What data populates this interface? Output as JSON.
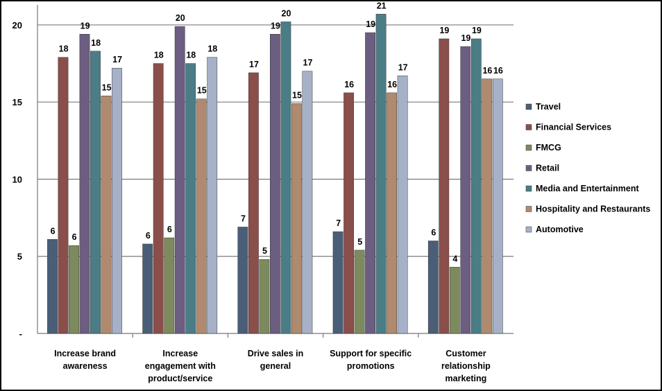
{
  "chart_data": {
    "type": "bar",
    "categories": [
      [
        "Increase brand",
        "awareness"
      ],
      [
        "Increase",
        "engagement with",
        "product/service"
      ],
      [
        "Drive sales in",
        "general"
      ],
      [
        "Support for specific",
        "promotions"
      ],
      [
        "Customer",
        "relationship",
        "marketing"
      ]
    ],
    "y_ticks": [
      {
        "value": 0,
        "label": "-"
      },
      {
        "value": 5,
        "label": "5"
      },
      {
        "value": 10,
        "label": "10"
      },
      {
        "value": 15,
        "label": "15"
      },
      {
        "value": 20,
        "label": "20"
      }
    ],
    "ylim": [
      0,
      21.3
    ],
    "grid": true,
    "legend_position": "right",
    "series": [
      {
        "name": "Travel",
        "color": "#4a5e78",
        "values": [
          6.1,
          5.8,
          6.9,
          6.6,
          6.0
        ],
        "labels": [
          "6",
          "6",
          "7",
          "7",
          "6"
        ]
      },
      {
        "name": "Financial Services",
        "color": "#8a4e4b",
        "values": [
          17.9,
          17.5,
          16.9,
          15.6,
          19.1
        ],
        "labels": [
          "18",
          "18",
          "17",
          "16",
          "19"
        ]
      },
      {
        "name": "FMCG",
        "color": "#7c8a5e",
        "values": [
          5.7,
          6.2,
          4.8,
          5.4,
          4.3
        ],
        "labels": [
          "6",
          "6",
          "5",
          "5",
          "4"
        ]
      },
      {
        "name": "Retail",
        "color": "#6b5e80",
        "values": [
          19.4,
          19.9,
          19.4,
          19.5,
          18.6
        ],
        "labels": [
          "19",
          "20",
          "19",
          "19",
          "19"
        ]
      },
      {
        "name": "Media and Entertainment",
        "color": "#4a7d86",
        "values": [
          18.3,
          17.5,
          20.2,
          20.7,
          19.1
        ],
        "labels": [
          "18",
          "18",
          "20",
          "21",
          "19"
        ]
      },
      {
        "name": "Hospitality and Restaurants",
        "color": "#b08a6e",
        "values": [
          15.4,
          15.2,
          14.9,
          15.6,
          16.5
        ],
        "labels": [
          "15",
          "15",
          "15",
          "16",
          "16"
        ]
      },
      {
        "name": "Automotive",
        "color": "#a6b1c8",
        "values": [
          17.2,
          17.9,
          17.0,
          16.7,
          16.5
        ],
        "labels": [
          "17",
          "18",
          "17",
          "17",
          "16"
        ]
      }
    ]
  }
}
